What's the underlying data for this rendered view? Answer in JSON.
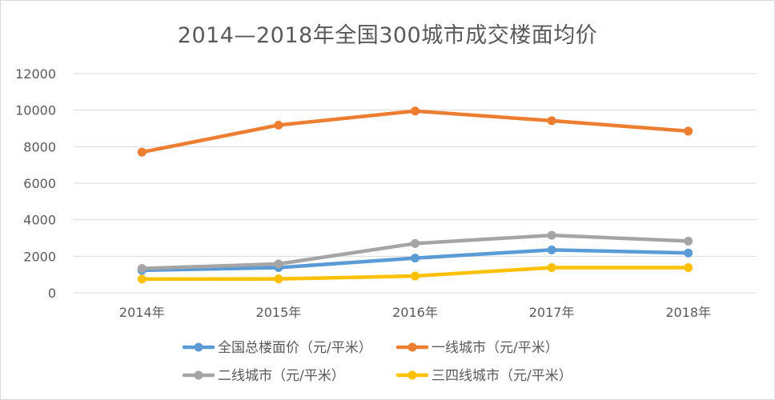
{
  "chart_data": {
    "type": "line",
    "title": "2014—2018年全国300城市成交楼面均价",
    "categories": [
      "2014年",
      "2015年",
      "2016年",
      "2017年",
      "2018年"
    ],
    "ylim": [
      0,
      12000
    ],
    "yticks": [
      0,
      2000,
      4000,
      6000,
      8000,
      10000,
      12000
    ],
    "grid": true,
    "legend_position": "bottom",
    "series": [
      {
        "name": "全国总楼面价（元/平米）",
        "color": "#5b9bd5",
        "values": [
          1230,
          1380,
          1900,
          2350,
          2180
        ]
      },
      {
        "name": "一线城市（元/平米）",
        "color": "#ed7d31",
        "values": [
          7700,
          9180,
          9950,
          9420,
          8850
        ]
      },
      {
        "name": "二线城市（元/平米）",
        "color": "#a5a5a5",
        "values": [
          1330,
          1580,
          2700,
          3150,
          2830
        ]
      },
      {
        "name": "三四线城市（元/平米）",
        "color": "#ffc000",
        "values": [
          750,
          760,
          920,
          1380,
          1380
        ]
      }
    ]
  }
}
